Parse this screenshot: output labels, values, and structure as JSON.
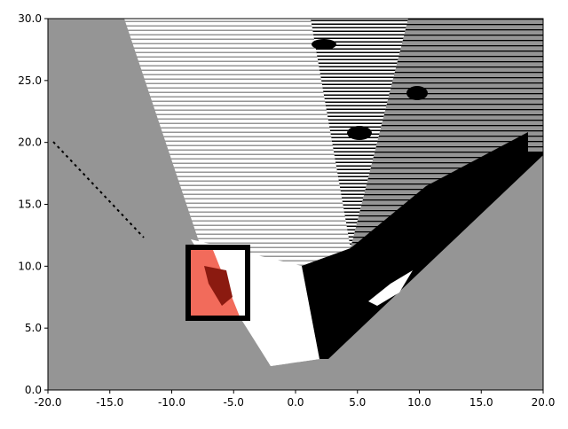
{
  "chart_data": {
    "type": "image",
    "xlim": [
      -20,
      20
    ],
    "ylim": [
      0,
      30
    ],
    "xticks": [
      {
        "value": -20,
        "label": "-20.0"
      },
      {
        "value": -15,
        "label": "-15.0"
      },
      {
        "value": -10,
        "label": "-10.0"
      },
      {
        "value": -5,
        "label": "-5.0"
      },
      {
        "value": 0,
        "label": "0.0"
      },
      {
        "value": 5,
        "label": "5.0"
      },
      {
        "value": 10,
        "label": "10.0"
      },
      {
        "value": 15,
        "label": "15.0"
      },
      {
        "value": 20,
        "label": "20.0"
      }
    ],
    "yticks": [
      {
        "value": 0,
        "label": "0.0"
      },
      {
        "value": 5,
        "label": "5.0"
      },
      {
        "value": 10,
        "label": "10.0"
      },
      {
        "value": 15,
        "label": "15.0"
      },
      {
        "value": 20,
        "label": "20.0"
      },
      {
        "value": 25,
        "label": "25.0"
      },
      {
        "value": 30,
        "label": "30.0"
      }
    ]
  }
}
